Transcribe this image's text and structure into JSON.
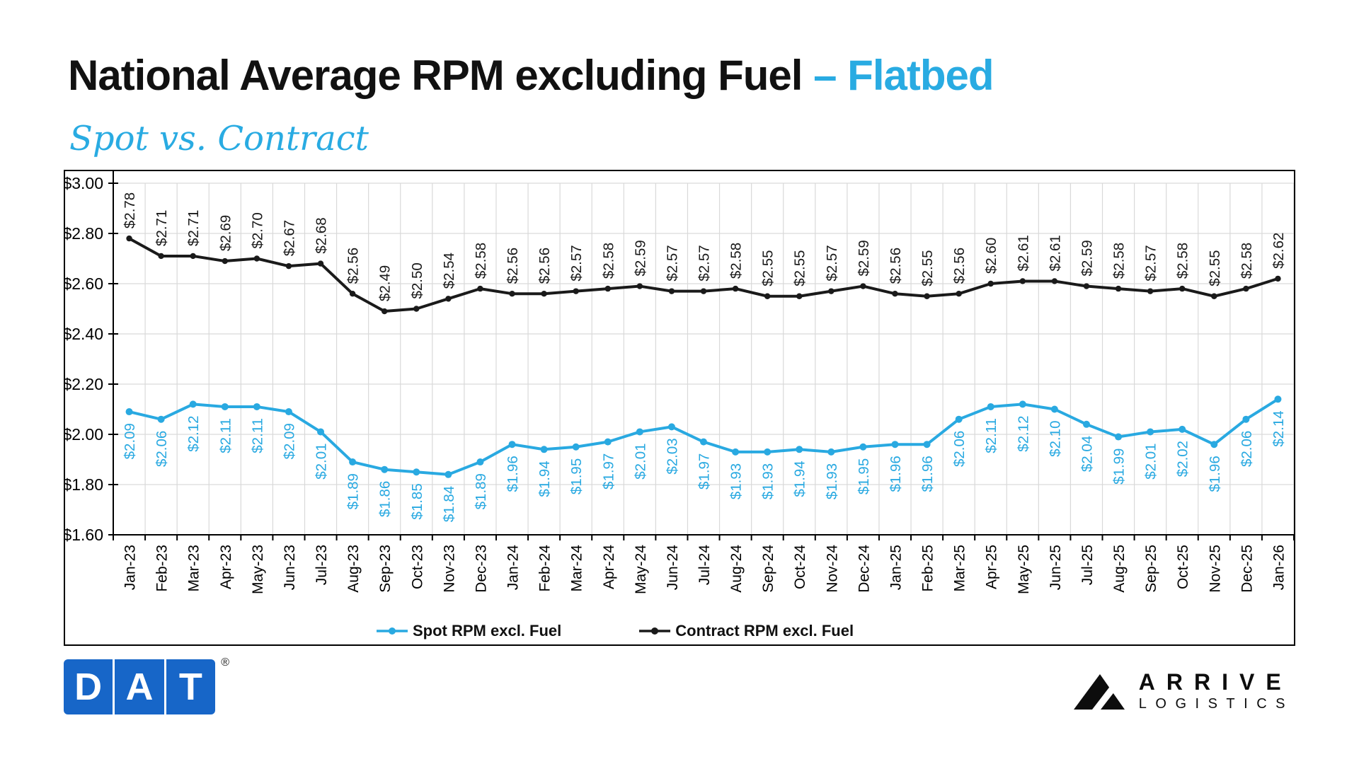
{
  "header": {
    "title": "National Average RPM excluding Fuel",
    "title_accent": "– Flatbed",
    "subtitle": "Spot vs. Contract"
  },
  "chart_data": {
    "type": "line",
    "title": "National Average RPM excluding Fuel – Flatbed, Spot vs. Contract",
    "categories": [
      "Jan-23",
      "Feb-23",
      "Mar-23",
      "Apr-23",
      "May-23",
      "Jun-23",
      "Jul-23",
      "Aug-23",
      "Sep-23",
      "Oct-23",
      "Nov-23",
      "Dec-23",
      "Jan-24",
      "Feb-24",
      "Mar-24",
      "Apr-24",
      "May-24",
      "Jun-24",
      "Jul-24",
      "Aug-24",
      "Sep-24",
      "Oct-24",
      "Nov-24",
      "Dec-24",
      "Jan-25",
      "Feb-25",
      "Mar-25",
      "Apr-25",
      "May-25",
      "Jun-25",
      "Jul-25",
      "Aug-25",
      "Sep-25",
      "Oct-25",
      "Nov-25",
      "Dec-25",
      "Jan-26"
    ],
    "series": [
      {
        "name": "Spot RPM excl. Fuel",
        "color": "#29A9E1",
        "labels_position": "below",
        "values": [
          2.09,
          2.06,
          2.12,
          2.11,
          2.11,
          2.09,
          2.01,
          1.89,
          1.86,
          1.85,
          1.84,
          1.89,
          1.96,
          1.94,
          1.95,
          1.97,
          2.01,
          2.03,
          1.97,
          1.93,
          1.93,
          1.94,
          1.93,
          1.95,
          1.96,
          1.96,
          2.06,
          2.11,
          2.12,
          2.1,
          2.04,
          1.99,
          2.01,
          2.02,
          1.96,
          2.06,
          2.14
        ]
      },
      {
        "name": "Contract RPM excl. Fuel",
        "color": "#1A1A1A",
        "labels_position": "above",
        "values": [
          2.78,
          2.71,
          2.71,
          2.69,
          2.7,
          2.67,
          2.68,
          2.56,
          2.49,
          2.5,
          2.54,
          2.58,
          2.56,
          2.56,
          2.57,
          2.58,
          2.59,
          2.57,
          2.57,
          2.58,
          2.55,
          2.55,
          2.57,
          2.59,
          2.56,
          2.55,
          2.56,
          2.6,
          2.61,
          2.61,
          2.59,
          2.58,
          2.57,
          2.58,
          2.55,
          2.58,
          2.62
        ]
      }
    ],
    "ylim": [
      1.6,
      3.0
    ],
    "yticks": [
      {
        "value": 1.6,
        "label": "$1.60"
      },
      {
        "value": 1.8,
        "label": "$1.80"
      },
      {
        "value": 2.0,
        "label": "$2.00"
      },
      {
        "value": 2.2,
        "label": "$2.20"
      },
      {
        "value": 2.4,
        "label": "$2.40"
      },
      {
        "value": 2.6,
        "label": "$2.60"
      },
      {
        "value": 2.8,
        "label": "$2.80"
      },
      {
        "value": 3.0,
        "label": "$3.00"
      }
    ],
    "grid": true,
    "legend_position": "bottom",
    "data_label_prefix": "$"
  },
  "footer": {
    "dat_letters": [
      "D",
      "A",
      "T"
    ],
    "dat_registered": "®",
    "arrive_line1": "ARRIVE",
    "arrive_line2": "LOGISTICS"
  },
  "colors": {
    "accent_blue": "#29ABE2",
    "spot_blue": "#29A9E1",
    "contract_black": "#1A1A1A",
    "grid_gray": "#D9D9D9",
    "dat_blue": "#1766C8"
  }
}
